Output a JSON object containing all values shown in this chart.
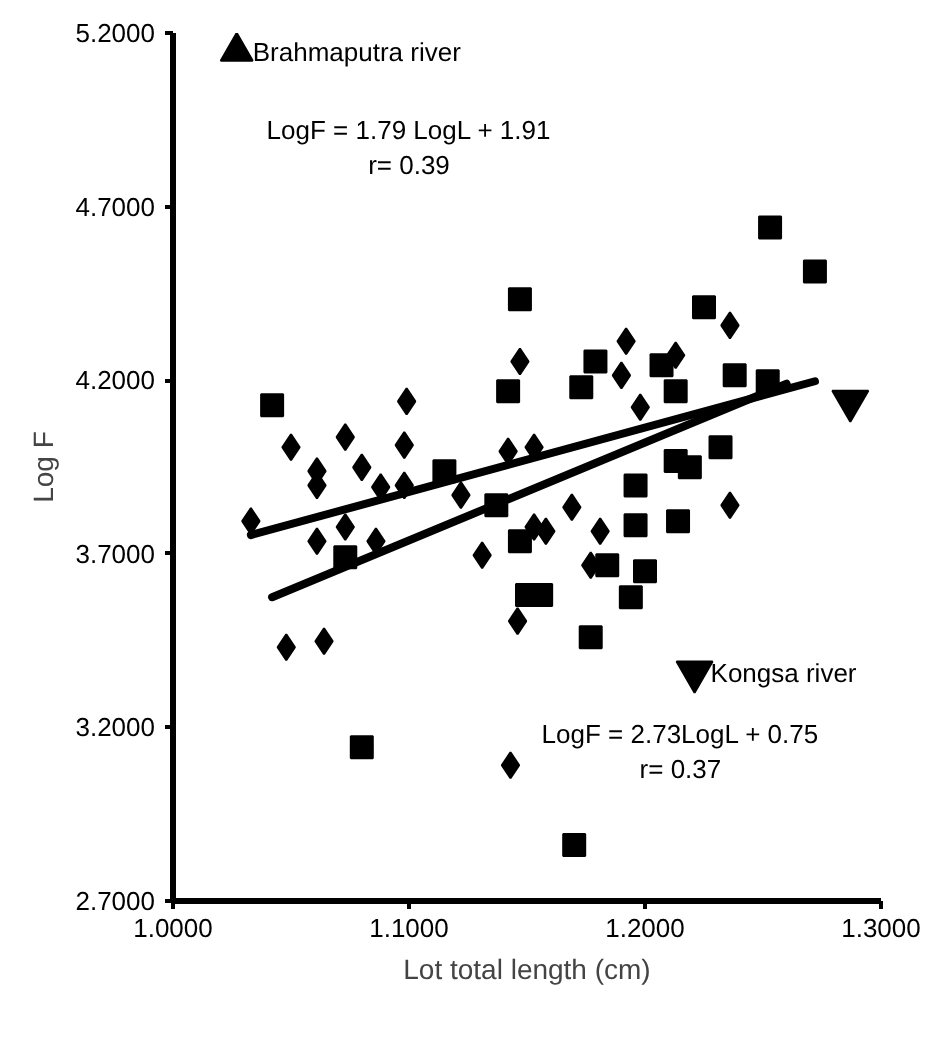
{
  "chart_data": {
    "type": "scatter",
    "xlabel": "Lot total length (cm)",
    "ylabel": "Log F",
    "xlim": [
      1.0,
      1.3
    ],
    "ylim": [
      2.7,
      5.2
    ],
    "xticks": [
      {
        "value": 1.0,
        "label": "1.0000"
      },
      {
        "value": 1.1,
        "label": "1.1000"
      },
      {
        "value": 1.2,
        "label": "1.2000"
      },
      {
        "value": 1.3,
        "label": "1.3000"
      }
    ],
    "yticks": [
      {
        "value": 2.7,
        "label": "2.7000"
      },
      {
        "value": 3.2,
        "label": "3.2000"
      },
      {
        "value": 3.7,
        "label": "3.7000"
      },
      {
        "value": 4.2,
        "label": "4.2000"
      },
      {
        "value": 4.7,
        "label": "4.7000"
      },
      {
        "value": 5.2,
        "label": "5.2000"
      }
    ],
    "grid": false,
    "legend": false,
    "series": [
      {
        "marker": "diamond",
        "color": "#000000",
        "x": [
          1.147,
          1.099,
          1.05,
          1.073,
          1.098,
          1.061,
          1.061,
          1.08,
          1.088,
          1.098,
          1.122,
          1.142,
          1.153,
          1.033,
          1.073,
          1.061,
          1.086,
          1.131,
          1.153,
          1.146,
          1.048,
          1.064,
          1.236,
          1.192,
          1.213,
          1.19,
          1.198,
          1.236,
          1.181,
          1.169,
          1.177,
          1.158,
          1.143
        ],
        "values": [
          4.254,
          4.139,
          4.007,
          4.036,
          4.013,
          3.938,
          3.897,
          3.949,
          3.892,
          3.897,
          3.869,
          3.995,
          4.007,
          3.794,
          3.777,
          3.736,
          3.736,
          3.696,
          3.777,
          3.506,
          3.431,
          3.448,
          4.358,
          4.312,
          4.272,
          4.214,
          4.122,
          3.84,
          3.765,
          3.834,
          3.667,
          3.765,
          3.091
        ]
      },
      {
        "marker": "square",
        "color": "#000000",
        "x": [
          1.147,
          1.142,
          1.042,
          1.115,
          1.137,
          1.147,
          1.073,
          1.15,
          1.253,
          1.272,
          1.225,
          1.179,
          1.173,
          1.207,
          1.213,
          1.238,
          1.252,
          1.232,
          1.213,
          1.219,
          1.196,
          1.196,
          1.214,
          1.2,
          1.194,
          1.184,
          1.177,
          1.156,
          1.08,
          1.17
        ],
        "values": [
          4.433,
          4.168,
          4.128,
          3.938,
          3.84,
          3.736,
          3.69,
          3.581,
          4.64,
          4.513,
          4.41,
          4.254,
          4.18,
          4.243,
          4.168,
          4.214,
          4.197,
          4.007,
          3.967,
          3.949,
          3.897,
          3.782,
          3.794,
          3.65,
          3.575,
          3.667,
          3.46,
          3.581,
          3.143,
          2.861
        ]
      },
      {
        "color": "#000000",
        "x": [
          1.287
        ],
        "values": [
          4.14
        ]
      },
      {
        "marker": "triangle",
        "color": "#000000",
        "name": "Brahmaputra river",
        "x": [
          1.027
        ],
        "values": [
          5.147
        ]
      },
      {
        "color": "#000000",
        "name": "Kongsa river",
        "x": [
          1.221
        ],
        "values": [
          3.36
        ]
      },
      {
        "type": "line",
        "color": "#000000",
        "x": [
          1.033,
          1.272
        ],
        "values": [
          3.754,
          4.197
        ]
      },
      {
        "type": "line",
        "color": "#000000",
        "x": [
          1.042,
          1.26
        ],
        "values": [
          3.575,
          4.19
        ]
      }
    ],
    "annotations": [
      "LogF = 1.79 LogL + 1.91",
      "r= 0.39",
      "LogF = 2.73LogL + 0.75",
      "r= 0.37"
    ]
  }
}
